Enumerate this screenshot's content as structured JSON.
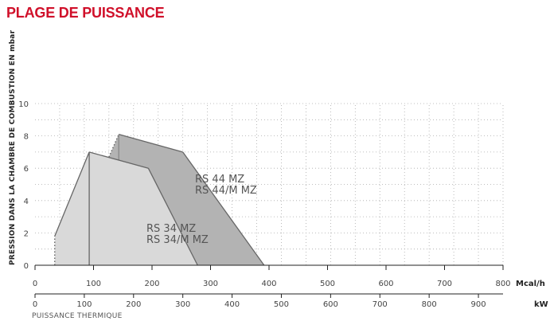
{
  "title": "PLAGE DE PUISSANCE",
  "chart_data": {
    "type": "area",
    "ylabel": "PRESSION DANS LA CHAMBRE DE COMBUSTION EN mbar",
    "xlabel": "PUISSANCE THERMIQUE",
    "ylim": [
      0,
      10
    ],
    "yticks": [
      "0",
      "2",
      "4",
      "6",
      "8",
      "10"
    ],
    "x_unit_primary": "Mcal/h",
    "x_unit_secondary": "kW",
    "xlim_mcal": [
      0,
      800
    ],
    "xlim_kw": [
      0,
      950
    ],
    "xticks_mcal": [
      "0",
      "100",
      "200",
      "300",
      "400",
      "500",
      "600",
      "700",
      "800"
    ],
    "xticks_kw": [
      "0",
      "100",
      "200",
      "300",
      "400",
      "500",
      "600",
      "700",
      "800",
      "900"
    ],
    "grid": true,
    "series": [
      {
        "name": "RS 44 MZ\nRS 44/M MZ",
        "labels": [
          "RS 44 MZ",
          "RS 44/M MZ"
        ],
        "color": "#b3b3b3",
        "x_kw": [
          55,
          170,
          170,
          300,
          465,
          55
        ],
        "y": [
          0,
          8.1,
          8.1,
          7.0,
          0,
          0
        ],
        "min_output_kw": 170
      },
      {
        "name": "RS 34 MZ\nRS 34/M MZ",
        "labels": [
          "RS 34 MZ",
          "RS 34/M MZ"
        ],
        "color": "#d9d9d9",
        "x_kw": [
          40,
          40,
          110,
          230,
          330,
          40
        ],
        "y": [
          0,
          1.8,
          7.0,
          6.0,
          0,
          0
        ],
        "min_output_kw": 110
      }
    ]
  }
}
